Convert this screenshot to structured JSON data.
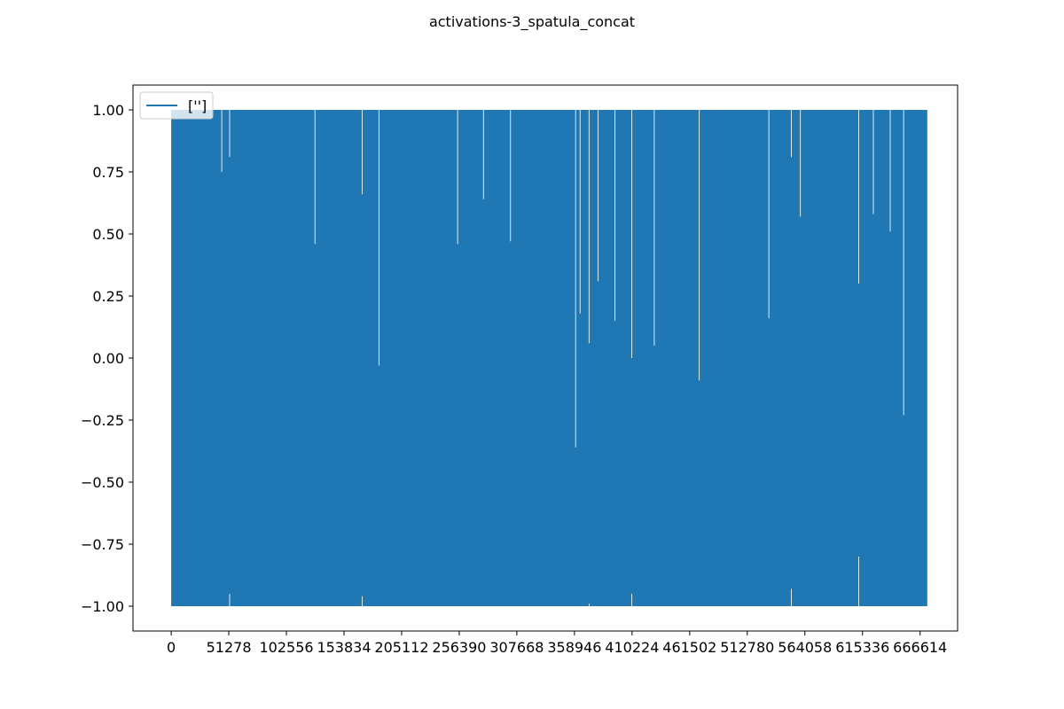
{
  "chart_data": {
    "type": "line",
    "title": "activations-3_spatula_concat",
    "xlabel": "",
    "ylabel": "",
    "xlim": [
      -34000,
      700000
    ],
    "ylim": [
      -1.1,
      1.1
    ],
    "x_ticks": [
      0,
      51278,
      102556,
      153834,
      205112,
      256390,
      307668,
      358946,
      410224,
      461502,
      512780,
      564058,
      615336,
      666614
    ],
    "y_ticks": [
      1.0,
      0.75,
      0.5,
      0.25,
      0.0,
      -0.25,
      -0.5,
      -0.75,
      -1.0
    ],
    "y_tick_labels": [
      "1.00",
      "0.75",
      "0.50",
      "0.25",
      "0.00",
      "−0.25",
      "−0.50",
      "−0.75",
      "−1.00"
    ],
    "legend": {
      "placement": "upper-left",
      "entries": [
        {
          "label": "['']",
          "color": "#1f77b4"
        }
      ]
    },
    "series": [
      {
        "name": "['']",
        "color": "#1f77b4",
        "x_range": [
          0,
          673000
        ],
        "y_min": -1.0,
        "y_max": 1.0,
        "note": "dense oscillating activations spanning the full [-1, 1] range",
        "gap_x": [
          45000,
          52000,
          128000,
          170000,
          185000,
          255000,
          278000,
          302000,
          360000,
          364000,
          372000,
          380000,
          395000,
          410000,
          430000,
          470000,
          532000,
          552000,
          560000,
          612000,
          625000,
          640000,
          652000
        ],
        "gap_top": [
          0.75,
          0.81,
          0.46,
          0.66,
          -0.03,
          0.46,
          0.64,
          0.47,
          -0.36,
          0.18,
          0.06,
          0.31,
          0.15,
          0.0,
          0.05,
          -0.09,
          0.16,
          0.81,
          0.57,
          0.3,
          0.58,
          0.51,
          -0.23
        ],
        "gap_bottom": [
          -1.0,
          -0.95,
          -1.0,
          -0.96,
          -1.0,
          -1.0,
          -1.0,
          -1.0,
          -1.0,
          -1.0,
          -0.99,
          -1.0,
          -1.0,
          -0.95,
          -1.0,
          -1.0,
          -1.0,
          -0.93,
          -1.0,
          -0.8,
          -1.0,
          -1.0,
          -1.0
        ]
      }
    ]
  }
}
